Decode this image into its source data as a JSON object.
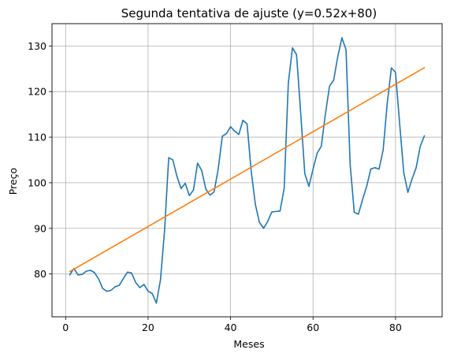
{
  "chart_data": {
    "type": "line",
    "title": "Segunda tentativa de ajuste (y=0.52x+80)",
    "xlabel": "Meses",
    "ylabel": "Preço",
    "xlim": [
      -3.3,
      91.3
    ],
    "ylim": [
      70.6,
      134.9
    ],
    "xticks": [
      0,
      20,
      40,
      60,
      80
    ],
    "yticks": [
      80,
      90,
      100,
      110,
      120,
      130
    ],
    "grid": true,
    "series": [
      {
        "color": "#1f77b4",
        "x": [
          1,
          2,
          3,
          4,
          5,
          6,
          7,
          8,
          9,
          10,
          11,
          12,
          13,
          14,
          15,
          16,
          17,
          18,
          19,
          20,
          21,
          22,
          23,
          24,
          25,
          26,
          27,
          28,
          29,
          30,
          31,
          32,
          33,
          34,
          35,
          36,
          37,
          38,
          39,
          40,
          41,
          42,
          43,
          44,
          45,
          46,
          47,
          48,
          49,
          50,
          51,
          52,
          53,
          54,
          55,
          56,
          57,
          58,
          59,
          60,
          61,
          62,
          63,
          64,
          65,
          66,
          67,
          68,
          69,
          70,
          71,
          72,
          73,
          74,
          75,
          76,
          77,
          78,
          79,
          80,
          81,
          82,
          83,
          84,
          85,
          86,
          87
        ],
        "y": [
          79.8,
          81.2,
          79.8,
          79.9,
          80.6,
          80.8,
          80.3,
          78.9,
          76.8,
          76.2,
          76.4,
          77.2,
          77.5,
          79.0,
          80.4,
          80.2,
          78.1,
          77.0,
          77.7,
          76.2,
          75.7,
          73.6,
          78.7,
          89.6,
          105.5,
          105.0,
          101.4,
          98.7,
          99.9,
          97.2,
          98.4,
          104.3,
          102.7,
          98.6,
          97.3,
          98.0,
          103.0,
          110.2,
          110.8,
          112.3,
          111.3,
          110.6,
          113.7,
          112.9,
          102.6,
          95.3,
          91.3,
          90.0,
          91.5,
          93.6,
          93.7,
          93.8,
          98.8,
          121.8,
          129.6,
          128.1,
          115.4,
          102.0,
          99.2,
          103.0,
          106.5,
          108.0,
          115.1,
          121.2,
          122.5,
          127.7,
          131.8,
          129.2,
          104.0,
          93.5,
          93.1,
          96.3,
          99.2,
          103.0,
          103.3,
          103.0,
          107.2,
          117.5,
          125.2,
          124.2,
          113.0,
          102.2,
          97.9,
          100.8,
          103.3,
          108.0,
          110.3
        ]
      },
      {
        "color": "#ff7f0e",
        "x": [
          1,
          87
        ],
        "y": [
          80.52,
          125.24
        ]
      }
    ]
  }
}
